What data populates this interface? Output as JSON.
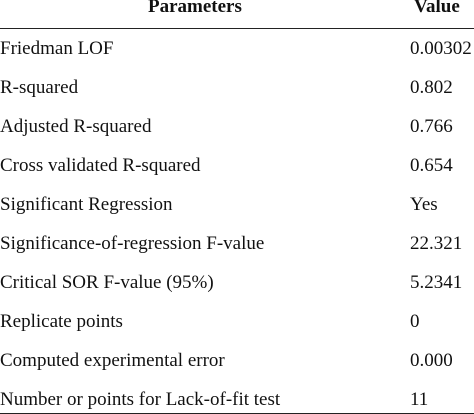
{
  "table": {
    "headers": {
      "parameter": "Parameters",
      "value": "Value"
    },
    "rows": [
      {
        "parameter": "Friedman LOF",
        "value": "0.00302"
      },
      {
        "parameter": "R-squared",
        "value": "0.802"
      },
      {
        "parameter": "Adjusted R-squared",
        "value": "0.766"
      },
      {
        "parameter": "Cross validated R-squared",
        "value": "0.654"
      },
      {
        "parameter": "Significant Regression",
        "value": "Yes"
      },
      {
        "parameter": "Significance-of-regression F-value",
        "value": "22.321"
      },
      {
        "parameter": "Critical SOR F-value (95%)",
        "value": "5.2341"
      },
      {
        "parameter": "Replicate points",
        "value": "0"
      },
      {
        "parameter": "Computed experimental error",
        "value": "0.000"
      },
      {
        "parameter": "Number or points for Lack-of-fit test",
        "value": "11"
      }
    ]
  }
}
